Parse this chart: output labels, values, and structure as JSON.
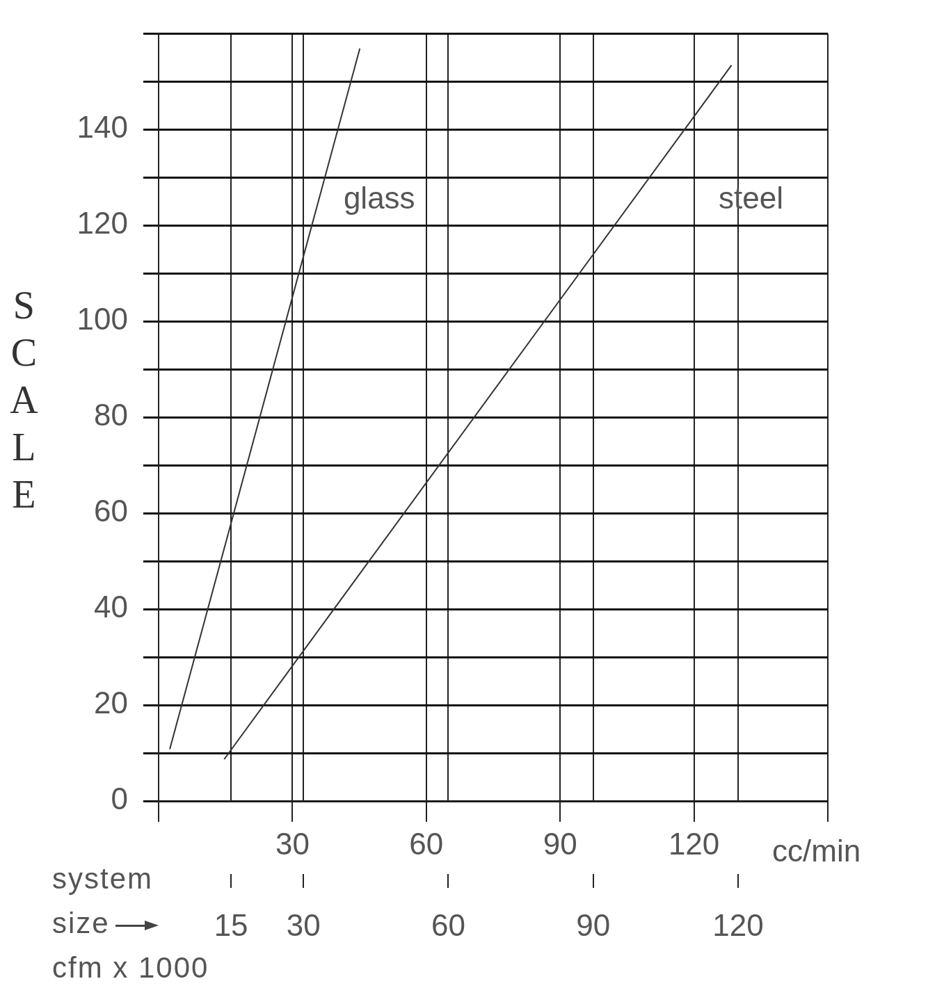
{
  "chart_data": {
    "type": "line",
    "ylabel": "SCALE",
    "xlabel": "cc/min",
    "x2label": "system\nsize\ncfm x 1000",
    "xlim": [
      0,
      150
    ],
    "xticks": [
      {
        "value": 0,
        "label": null
      },
      30,
      60,
      90,
      120,
      {
        "value": 150,
        "label": null
      }
    ],
    "x2lim": [
      0,
      138.6
    ],
    "x2ticks": [
      15,
      30,
      60,
      90,
      120
    ],
    "ylim": [
      0,
      160
    ],
    "yticks": [
      0,
      {
        "value": 10,
        "label": null
      },
      20,
      {
        "value": 30,
        "label": null
      },
      40,
      {
        "value": 50,
        "label": null
      },
      60,
      {
        "value": 70,
        "label": null
      },
      80,
      {
        "value": 90,
        "label": null
      },
      100,
      {
        "value": 110,
        "label": null
      },
      120,
      {
        "value": 130,
        "label": null
      },
      140,
      {
        "value": 150,
        "label": null
      },
      {
        "value": 160,
        "label": null
      }
    ],
    "grid": true,
    "legend": false,
    "marker": "none",
    "line_style": "solid",
    "series": [
      {
        "name": "glass",
        "color": "#333333",
        "x": [
          2.5,
          45.1
        ],
        "values": [
          10.8,
          156.9
        ]
      },
      {
        "name": "steel",
        "color": "#333333",
        "x": [
          14.7,
          128.4
        ],
        "values": [
          8.7,
          153.4
        ]
      }
    ]
  }
}
